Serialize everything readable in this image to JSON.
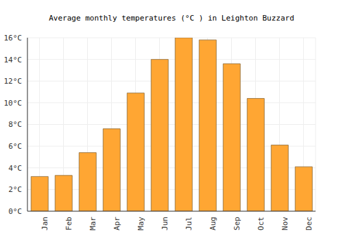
{
  "chart_data": {
    "type": "bar",
    "title": "Average monthly temperatures (°C ) in Leighton Buzzard",
    "categories": [
      "Jan",
      "Feb",
      "Mar",
      "Apr",
      "May",
      "Jun",
      "Jul",
      "Aug",
      "Sep",
      "Oct",
      "Nov",
      "Dec"
    ],
    "values": [
      3.2,
      3.3,
      5.4,
      7.6,
      10.9,
      14.0,
      16.0,
      15.8,
      13.6,
      10.4,
      6.1,
      4.1
    ],
    "color": "#ffa633",
    "ylim": [
      0,
      16
    ],
    "yticks": [
      {
        "value": 0,
        "label": "0°C"
      },
      {
        "value": 2,
        "label": "2°C"
      },
      {
        "value": 4,
        "label": "4°C"
      },
      {
        "value": 6,
        "label": "6°C"
      },
      {
        "value": 8,
        "label": "8°C"
      },
      {
        "value": 10,
        "label": "10°C"
      },
      {
        "value": 12,
        "label": "12°C"
      },
      {
        "value": 14,
        "label": "14°C"
      },
      {
        "value": 16,
        "label": "16°C"
      }
    ],
    "grid": true
  }
}
